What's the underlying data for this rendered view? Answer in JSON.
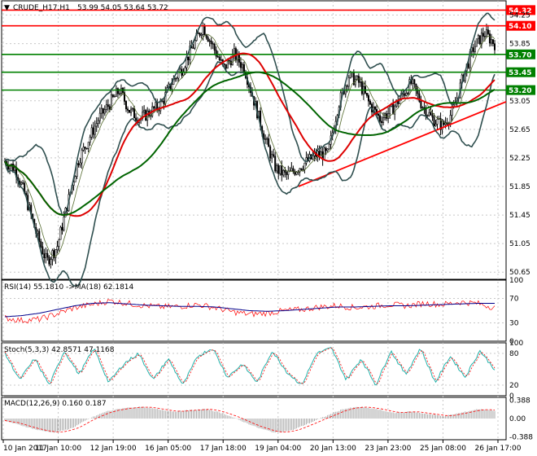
{
  "window": {
    "symbol_title": "CRUDE_H17,H1",
    "ohlc": "53.99 54.05 53.64 53.72"
  },
  "rsi": {
    "title": "RSI(14) 55.1810",
    "ma_label": "->MA(18) 62.1814",
    "levels": [
      "100",
      "70",
      "30",
      "0"
    ]
  },
  "stoch": {
    "title": "Stoch(5,3,3) 42.8571 47.1168",
    "levels": [
      "100",
      "80",
      "20",
      "0"
    ]
  },
  "macd": {
    "title": "MACD(12,26,9) 0.160 0.187",
    "levels": [
      "0.388",
      "0.00",
      "-0.388"
    ]
  },
  "price_axis": [
    "54.25",
    "53.85",
    "53.05",
    "52.65",
    "52.25",
    "51.85",
    "51.45",
    "51.05",
    "50.65"
  ],
  "time_axis": [
    "10 Jan 2017",
    "11 Jan 10:00",
    "12 Jan 19:00",
    "16 Jan 05:00",
    "17 Jan 18:00",
    "19 Jan 04:00",
    "20 Jan 13:00",
    "23 Jan 23:00",
    "25 Jan 08:00",
    "26 Jan 17:00"
  ],
  "colors": {
    "up": "#000000",
    "resistance": "#ff0000",
    "support": "#008000",
    "ma_red": "#dd0000",
    "ma_green": "#006400",
    "bands": "#2f4f4f",
    "rsi_line": "#ff0000",
    "rsi_ma": "#00008b",
    "stoch_main": "#20b2aa",
    "stoch_signal": "#ff0000",
    "macd_hist": "#a9a9a9",
    "macd_signal": "#ff0000",
    "label_bg_red": "#ff0000",
    "label_bg_green": "#008000"
  },
  "chart_data": {
    "type": "candlestick",
    "ylim": [
      50.55,
      54.45
    ],
    "levels": [
      {
        "price": 54.32,
        "label": "54.32",
        "kind": "resistance"
      },
      {
        "price": 54.1,
        "label": "54.10",
        "kind": "resistance"
      },
      {
        "price": 53.7,
        "label": "53.70",
        "kind": "support"
      },
      {
        "price": 53.45,
        "label": "53.45",
        "kind": "support"
      },
      {
        "price": 53.2,
        "label": "53.20",
        "kind": "support"
      }
    ],
    "trendline": {
      "from": [
        "19 Jan 04:00",
        51.85
      ],
      "to": [
        "26 Jan 17:00",
        52.98
      ]
    },
    "price_path": [
      52.2,
      52.1,
      51.7,
      51.2,
      50.8,
      51.0,
      51.6,
      52.2,
      52.5,
      52.8,
      53.0,
      53.2,
      52.9,
      52.8,
      52.9,
      53.0,
      53.3,
      53.5,
      53.8,
      54.1,
      53.8,
      53.5,
      53.7,
      53.5,
      53.0,
      52.5,
      52.1,
      52.0,
      52.1,
      52.2,
      52.3,
      52.3,
      53.0,
      53.4,
      53.3,
      53.0,
      52.8,
      52.9,
      53.1,
      53.3,
      53.0,
      52.8,
      52.7,
      52.9,
      53.4,
      53.8,
      54.0,
      53.85
    ],
    "rsi_path": [
      38,
      34,
      36,
      45,
      55,
      60,
      66,
      62,
      58,
      56,
      57,
      60,
      55,
      48,
      44,
      46,
      50,
      52,
      56,
      58,
      55,
      57,
      60,
      58,
      62,
      60,
      64,
      62,
      55
    ],
    "rsi_ma_path": [
      40,
      42,
      46,
      52,
      58,
      62,
      63,
      61,
      59,
      58,
      57,
      57,
      56,
      53,
      50,
      49,
      50,
      52,
      54,
      56,
      56,
      57,
      58,
      58,
      59,
      60,
      61,
      62,
      62
    ],
    "stoch_path": [
      80,
      30,
      70,
      20,
      85,
      40,
      90,
      25,
      60,
      80,
      30,
      70,
      20,
      75,
      90,
      35,
      60,
      25,
      85,
      45,
      20,
      80,
      90,
      30,
      70,
      20,
      85,
      40,
      90,
      25,
      75,
      35,
      85,
      50
    ],
    "macd_path": [
      -0.05,
      -0.15,
      -0.25,
      -0.3,
      -0.2,
      0.0,
      0.15,
      0.22,
      0.25,
      0.2,
      0.15,
      0.18,
      0.2,
      0.1,
      -0.05,
      -0.2,
      -0.3,
      -0.25,
      -0.1,
      0.05,
      0.2,
      0.25,
      0.2,
      0.12,
      0.15,
      0.1,
      0.05,
      0.12,
      0.2,
      0.17
    ]
  }
}
